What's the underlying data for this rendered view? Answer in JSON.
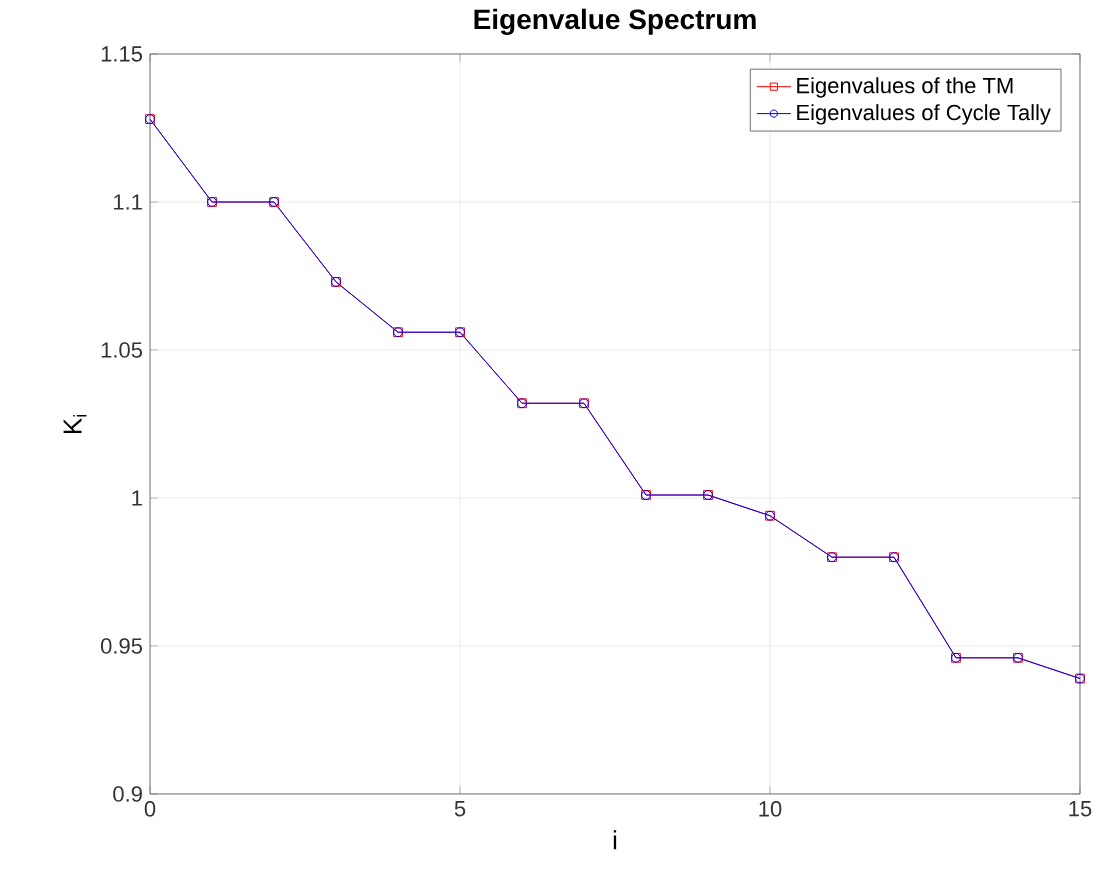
{
  "chart_data": {
    "type": "line",
    "title": "Eigenvalue Spectrum",
    "xlabel": "i",
    "ylabel": "K$_{i}$",
    "x": [
      0,
      1,
      2,
      3,
      4,
      5,
      6,
      7,
      8,
      9,
      10,
      11,
      12,
      13,
      14,
      15
    ],
    "series": [
      {
        "name": "Eigenvalues of the TM",
        "color": "#ff0000",
        "marker": "square",
        "values": [
          1.128,
          1.1,
          1.1,
          1.073,
          1.056,
          1.056,
          1.032,
          1.032,
          1.001,
          1.001,
          0.994,
          0.98,
          0.98,
          0.946,
          0.946,
          0.939
        ]
      },
      {
        "name": "Eigenvalues of Cycle Tally",
        "color": "#0000ff",
        "marker": "circle",
        "values": [
          1.128,
          1.1,
          1.1,
          1.073,
          1.056,
          1.056,
          1.032,
          1.032,
          1.001,
          1.001,
          0.994,
          0.98,
          0.98,
          0.946,
          0.946,
          0.939
        ]
      }
    ],
    "xlim": [
      0,
      15
    ],
    "ylim": [
      0.9,
      1.15
    ],
    "xticks": [
      0,
      5,
      10,
      15
    ],
    "yticks": [
      0.9,
      0.95,
      1,
      1.05,
      1.1,
      1.15
    ],
    "grid": true,
    "legend": "top right",
    "line_style": "solid"
  }
}
